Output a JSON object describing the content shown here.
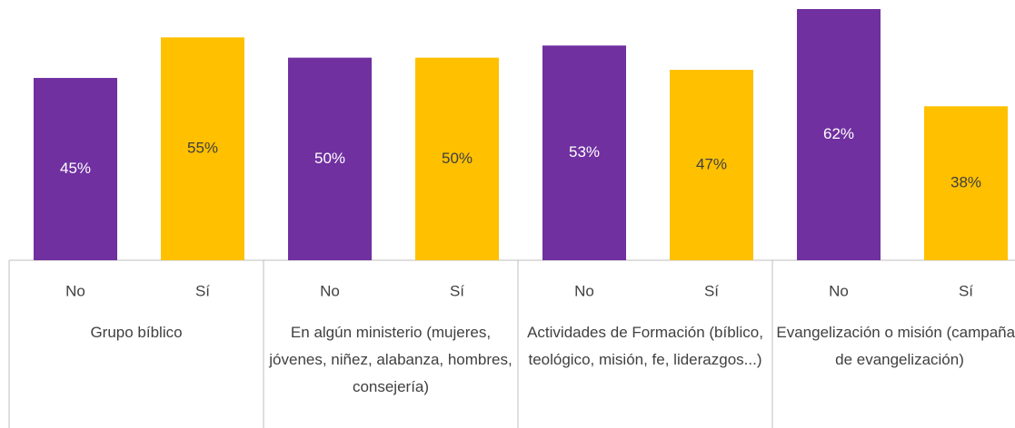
{
  "chart_data": {
    "type": "bar",
    "categories": [
      "Grupo bíblico",
      "En algún ministerio (mujeres, jóvenes, niñez, alabanza, hombres, consejería)",
      "Actividades de Formación (bíblico, teológico, misión, fe, liderazgos...)",
      "Evangelización o misión (campañas de evangelización)"
    ],
    "series": [
      {
        "name": "No",
        "color": "#7030a0",
        "values": [
          45,
          50,
          53,
          62
        ],
        "value_labels": [
          "45%",
          "50%",
          "53%",
          "62%"
        ]
      },
      {
        "name": "Sí",
        "color": "#ffc000",
        "values": [
          55,
          50,
          47,
          38
        ],
        "value_labels": [
          "55%",
          "50%",
          "47%",
          "38%"
        ]
      }
    ]
  }
}
